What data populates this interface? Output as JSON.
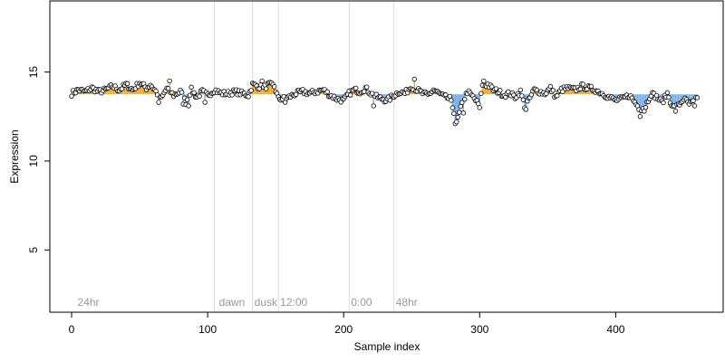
{
  "chart_data": {
    "type": "scatter",
    "title": "",
    "xlabel": "Sample index",
    "ylabel": "Expression",
    "xlim": [
      -16,
      479
    ],
    "ylim": [
      1.5,
      19
    ],
    "x_ticks": [
      0,
      100,
      200,
      300,
      400
    ],
    "y_ticks": [
      5,
      10,
      15
    ],
    "baseline": 13.75,
    "grid": false,
    "legend": "none",
    "colors": {
      "above_baseline": "#f5a623",
      "below_baseline": "#7aaee8",
      "divider": "#dcdcdc",
      "period_label": "#9a9a9a",
      "point_stroke": "#000000"
    },
    "dividers": [
      105,
      133,
      152,
      204,
      237
    ],
    "period_labels": [
      {
        "x": 3,
        "text": "24hr"
      },
      {
        "x": 107,
        "text": "dawn"
      },
      {
        "x": 133,
        "text": "dusk"
      },
      {
        "x": 152,
        "text": "12:00"
      },
      {
        "x": 204,
        "text": "0:00"
      },
      {
        "x": 237,
        "text": "48hr"
      }
    ],
    "anchors": [
      [
        0,
        13.8
      ],
      [
        5,
        14.0
      ],
      [
        10,
        13.9
      ],
      [
        15,
        14.1
      ],
      [
        20,
        13.9
      ],
      [
        25,
        14.0
      ],
      [
        30,
        14.2
      ],
      [
        35,
        14.0
      ],
      [
        40,
        14.3
      ],
      [
        45,
        14.0
      ],
      [
        50,
        14.4
      ],
      [
        55,
        14.1
      ],
      [
        58,
        14.3
      ],
      [
        62,
        13.9
      ],
      [
        66,
        13.5
      ],
      [
        70,
        14.1
      ],
      [
        75,
        13.7
      ],
      [
        80,
        13.9
      ],
      [
        84,
        13.3
      ],
      [
        88,
        14.0
      ],
      [
        92,
        13.6
      ],
      [
        96,
        13.9
      ],
      [
        100,
        13.7
      ],
      [
        105,
        14.0
      ],
      [
        110,
        13.8
      ],
      [
        115,
        13.8
      ],
      [
        120,
        13.9
      ],
      [
        125,
        13.8
      ],
      [
        130,
        13.7
      ],
      [
        133,
        14.3
      ],
      [
        137,
        14.2
      ],
      [
        141,
        14.1
      ],
      [
        145,
        14.3
      ],
      [
        149,
        14.2
      ],
      [
        152,
        13.5
      ],
      [
        156,
        13.5
      ],
      [
        160,
        13.6
      ],
      [
        165,
        13.8
      ],
      [
        170,
        13.9
      ],
      [
        175,
        13.8
      ],
      [
        180,
        13.9
      ],
      [
        185,
        14.0
      ],
      [
        190,
        13.7
      ],
      [
        195,
        13.5
      ],
      [
        200,
        13.4
      ],
      [
        204,
        13.8
      ],
      [
        208,
        14.0
      ],
      [
        212,
        13.9
      ],
      [
        216,
        14.1
      ],
      [
        220,
        13.8
      ],
      [
        224,
        13.6
      ],
      [
        228,
        13.5
      ],
      [
        232,
        13.4
      ],
      [
        237,
        13.7
      ],
      [
        241,
        13.9
      ],
      [
        245,
        13.8
      ],
      [
        250,
        14.2
      ],
      [
        254,
        14.0
      ],
      [
        258,
        13.8
      ],
      [
        262,
        13.7
      ],
      [
        266,
        14.0
      ],
      [
        270,
        13.8
      ],
      [
        274,
        13.6
      ],
      [
        278,
        13.5
      ],
      [
        281,
        12.8
      ],
      [
        284,
        12.4
      ],
      [
        287,
        13.2
      ],
      [
        291,
        13.9
      ],
      [
        295,
        13.6
      ],
      [
        299,
        13.2
      ],
      [
        302,
        14.2
      ],
      [
        306,
        14.3
      ],
      [
        310,
        14.0
      ],
      [
        314,
        13.9
      ],
      [
        318,
        13.7
      ],
      [
        322,
        13.8
      ],
      [
        326,
        13.6
      ],
      [
        330,
        13.9
      ],
      [
        333,
        13.1
      ],
      [
        336,
        13.4
      ],
      [
        340,
        14.0
      ],
      [
        344,
        13.9
      ],
      [
        348,
        13.8
      ],
      [
        352,
        14.1
      ],
      [
        356,
        13.6
      ],
      [
        360,
        14.0
      ],
      [
        365,
        14.1
      ],
      [
        370,
        14.0
      ],
      [
        375,
        14.2
      ],
      [
        380,
        14.1
      ],
      [
        385,
        14.0
      ],
      [
        390,
        13.8
      ],
      [
        395,
        13.6
      ],
      [
        400,
        13.4
      ],
      [
        405,
        13.5
      ],
      [
        410,
        13.7
      ],
      [
        414,
        13.3
      ],
      [
        418,
        12.9
      ],
      [
        422,
        13.1
      ],
      [
        426,
        13.8
      ],
      [
        430,
        13.6
      ],
      [
        434,
        13.3
      ],
      [
        438,
        13.8
      ],
      [
        442,
        13.0
      ],
      [
        446,
        13.1
      ],
      [
        450,
        13.5
      ],
      [
        454,
        13.2
      ],
      [
        457,
        13.3
      ],
      [
        460,
        13.5
      ]
    ],
    "spikes": [
      [
        64,
        13.3
      ],
      [
        72,
        14.5
      ],
      [
        82,
        13.2
      ],
      [
        86,
        13.1
      ],
      [
        98,
        13.3
      ],
      [
        140,
        14.5
      ],
      [
        157,
        13.3
      ],
      [
        222,
        13.1
      ],
      [
        252,
        14.6
      ],
      [
        282,
        12.1
      ],
      [
        283,
        12.2
      ],
      [
        288,
        12.7
      ],
      [
        300,
        13.0
      ],
      [
        303,
        14.5
      ],
      [
        334,
        12.9
      ],
      [
        418,
        12.5
      ],
      [
        421,
        12.8
      ],
      [
        444,
        12.8
      ],
      [
        458,
        13.1
      ],
      [
        461,
        13.0
      ]
    ]
  }
}
